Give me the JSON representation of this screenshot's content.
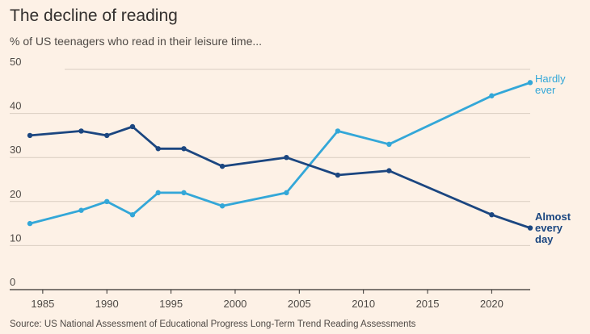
{
  "chart_data": {
    "type": "line",
    "title": "The decline of reading",
    "subtitle": "% of US teenagers who read in their leisure time...",
    "source": "Source: US National Assessment of Educational Progress Long-Term Trend Reading Assessments",
    "xlabel": "",
    "ylabel": "",
    "xlim": [
      1984,
      2023
    ],
    "ylim": [
      0,
      50
    ],
    "x_ticks": [
      1985,
      1990,
      1995,
      2000,
      2005,
      2010,
      2015,
      2020
    ],
    "y_ticks": [
      0,
      10,
      20,
      30,
      40,
      50
    ],
    "grid": true,
    "series": [
      {
        "name": "Hardly ever",
        "label_lines": [
          "Hardly",
          "ever"
        ],
        "color": "#33a7d8",
        "x": [
          1984,
          1988,
          1990,
          1992,
          1994,
          1996,
          1999,
          2004,
          2008,
          2012,
          2020,
          2023
        ],
        "values": [
          15,
          18,
          20,
          17,
          22,
          22,
          19,
          22,
          36,
          33,
          44,
          47
        ]
      },
      {
        "name": "Almost every day",
        "label_lines": [
          "Almost",
          "every",
          "day"
        ],
        "color": "#1b4680",
        "x": [
          1984,
          1988,
          1990,
          1992,
          1994,
          1996,
          1999,
          2004,
          2008,
          2012,
          2020,
          2023
        ],
        "values": [
          35,
          36,
          35,
          37,
          32,
          32,
          28,
          30,
          26,
          27,
          17,
          14
        ]
      }
    ]
  }
}
